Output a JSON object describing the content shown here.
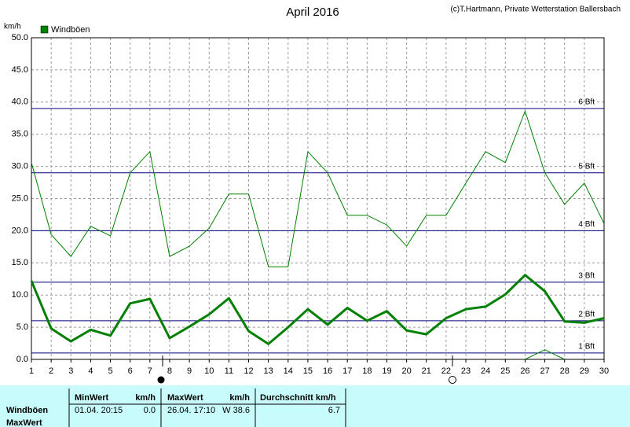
{
  "chart_data": {
    "type": "line",
    "title": "April 2016",
    "subtitle": "(c)T.Hartmann, Private Wetterstation Ballersbach",
    "y_label": "km/h",
    "x": [
      1,
      2,
      3,
      4,
      5,
      6,
      7,
      8,
      9,
      10,
      11,
      12,
      13,
      14,
      15,
      16,
      17,
      18,
      19,
      20,
      21,
      22,
      23,
      24,
      25,
      26,
      27,
      28,
      29,
      30
    ],
    "xlim": [
      1,
      30
    ],
    "xticks": [
      1,
      2,
      3,
      4,
      5,
      6,
      7,
      8,
      9,
      10,
      11,
      12,
      13,
      14,
      15,
      16,
      17,
      18,
      19,
      20,
      21,
      22,
      23,
      24,
      25,
      26,
      27,
      28,
      29,
      30
    ],
    "ylim": [
      0,
      50
    ],
    "yticks": [
      {
        "value": 0,
        "label": "0.0"
      },
      {
        "value": 5,
        "label": "5.0"
      },
      {
        "value": 10,
        "label": "10.0"
      },
      {
        "value": 15,
        "label": "15.0"
      },
      {
        "value": 20,
        "label": "20.0"
      },
      {
        "value": 25,
        "label": "25.0"
      },
      {
        "value": 30,
        "label": "30.0"
      },
      {
        "value": 35,
        "label": "35.0"
      },
      {
        "value": 40,
        "label": "40.0"
      },
      {
        "value": 45,
        "label": "45.0"
      },
      {
        "value": 50,
        "label": "50.0"
      }
    ],
    "grid": true,
    "legend": "top-left",
    "series": [
      {
        "name": "Windböen",
        "color": "#008000",
        "width": 1,
        "values": [
          30.6,
          19.4,
          16.0,
          20.7,
          19.2,
          29.0,
          32.3,
          16.0,
          17.6,
          20.4,
          25.7,
          25.7,
          14.4,
          14.4,
          32.3,
          29.0,
          22.4,
          22.4,
          20.9,
          17.6,
          22.4,
          22.4,
          27.4,
          32.3,
          30.6,
          38.6,
          29.0,
          24.1,
          27.4,
          21.1
        ]
      },
      {
        "color": "#008000",
        "width": 3,
        "values": [
          12.2,
          4.8,
          2.8,
          4.6,
          3.7,
          8.7,
          9.4,
          3.3,
          5.1,
          7.0,
          9.5,
          4.4,
          2.4,
          5.0,
          7.8,
          5.4,
          8.0,
          6.0,
          7.5,
          4.5,
          3.9,
          6.4,
          7.8,
          8.2,
          10.1,
          13.1,
          10.6,
          5.9,
          5.7,
          6.4
        ]
      },
      {
        "color": "#008000",
        "width": 1,
        "values": [
          null,
          null,
          null,
          null,
          null,
          null,
          null,
          null,
          null,
          null,
          null,
          null,
          null,
          null,
          null,
          null,
          null,
          null,
          null,
          null,
          null,
          null,
          null,
          null,
          null,
          0,
          1.5,
          0,
          null,
          null
        ]
      }
    ],
    "reference_lines": [
      {
        "value": 1,
        "label": "1 Bft"
      },
      {
        "value": 6,
        "label": "2 Bft"
      },
      {
        "value": 12,
        "label": "3 Bft"
      },
      {
        "value": 20,
        "label": "4 Bft"
      },
      {
        "value": 29,
        "label": "5 Bft"
      },
      {
        "value": 39,
        "label": "6 Bft"
      }
    ],
    "reference_color": "#000080"
  },
  "table": {
    "header": [
      "MinWert",
      "km/h",
      "MaxWert",
      "km/h",
      "Durchschnitt km/h"
    ],
    "rows": [
      [
        "Windböen",
        "01.04.  20:15",
        "0.0",
        "26.04.  17:10",
        "W 38.6",
        "6.7"
      ],
      [
        "MaxWert"
      ]
    ]
  }
}
